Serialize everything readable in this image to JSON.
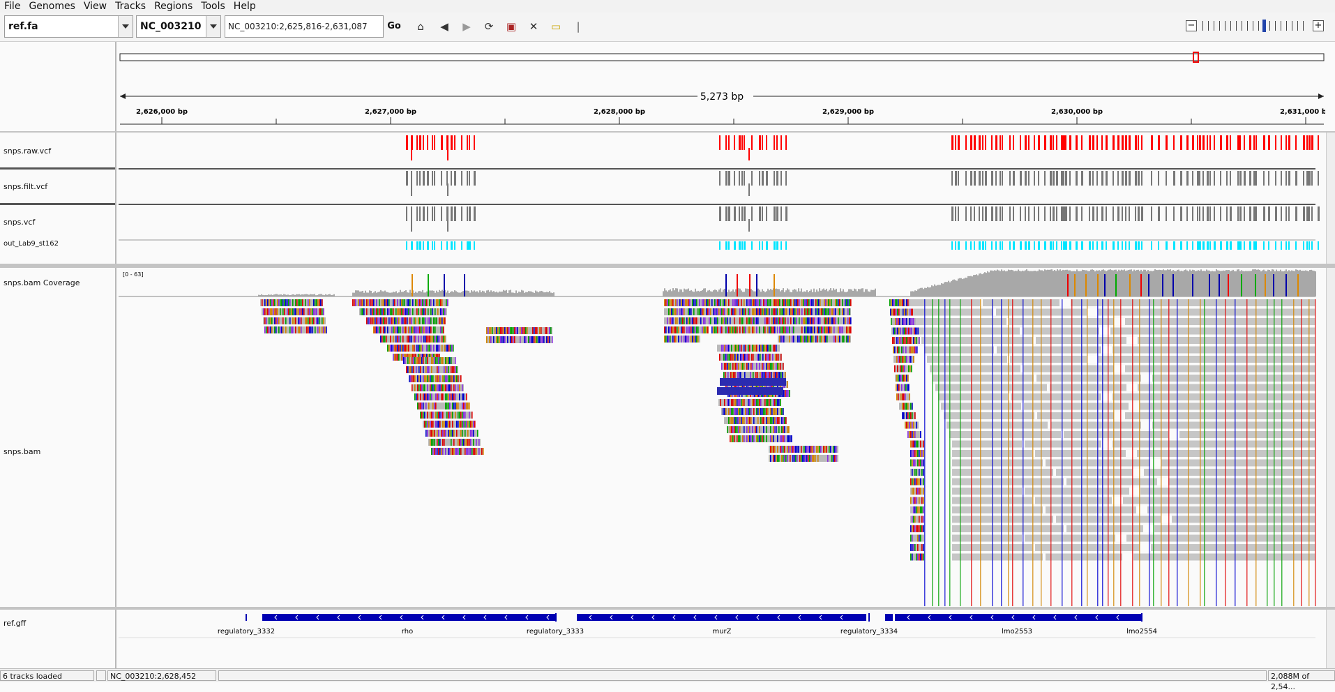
{
  "menu": [
    "File",
    "Genomes",
    "View",
    "Tracks",
    "Regions",
    "Tools",
    "Help"
  ],
  "toolbar": {
    "genome": "ref.fa",
    "chromosome": "NC_003210",
    "locus": "NC_003210:2,625,816-2,631,087",
    "go_label": "Go",
    "zoom_minus": "−",
    "zoom_plus": "+"
  },
  "ruler": {
    "span_label": "5,273 bp",
    "ticks": [
      "2,626,000 bp",
      "2,627,000 bp",
      "2,628,000 bp",
      "2,629,000 bp",
      "2,630,000 bp",
      "2,631,000 bp"
    ]
  },
  "tracks": {
    "vcf_raw": "snps.raw.vcf",
    "vcf_filt": "snps.filt.vcf",
    "vcf": "snps.vcf",
    "lab": "out_Lab9_st162",
    "coverage": "snps.bam Coverage",
    "coverage_range": "[0 - 63]",
    "bam": "snps.bam",
    "gff": "ref.gff"
  },
  "features": [
    "regulatory_3332",
    "rho",
    "regulatory_3333",
    "murZ",
    "regulatory_3334",
    "lmo2553",
    "lmo2554"
  ],
  "status": {
    "loaded": "6 tracks loaded",
    "position": "NC_003210:2,628,452",
    "memory": "2,088M of 2,54..."
  },
  "colors": {
    "raw": "#ff0000",
    "filt": "#777777",
    "lab": "#00e5ff",
    "gene": "#0000b2"
  }
}
